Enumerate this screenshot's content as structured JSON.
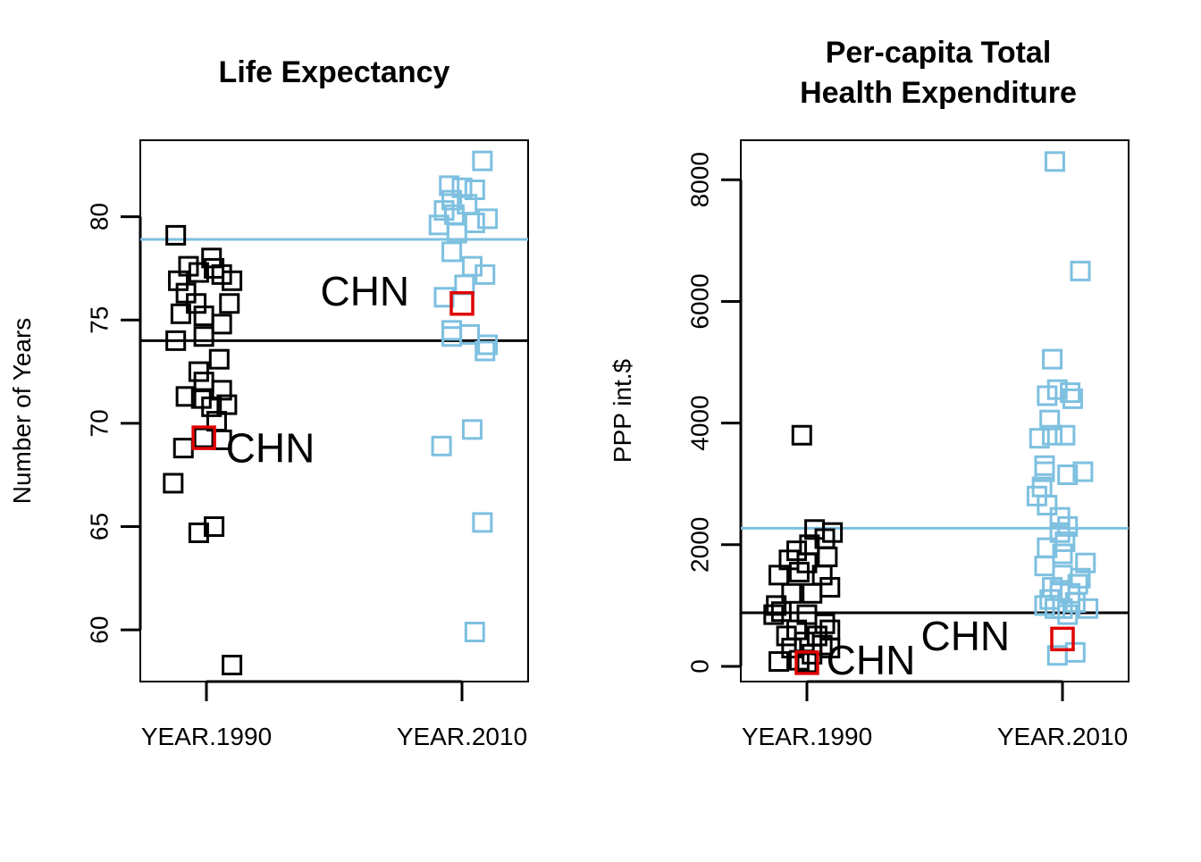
{
  "chart_data": [
    {
      "type": "scatter",
      "title": "Life Expectancy",
      "xlabel": "",
      "ylabel": "Number of Years",
      "categories": [
        "YEAR.1990",
        "YEAR.2010"
      ],
      "ylim": [
        57.5,
        83.7
      ],
      "yticks": [
        60,
        65,
        70,
        75,
        80
      ],
      "grid": false,
      "marker": "open-square",
      "colors": {
        "YEAR.1990": "#000000",
        "YEAR.2010": "#7ec0e0",
        "highlight": "#e00000"
      },
      "series": [
        {
          "name": "YEAR.1990",
          "category": "YEAR.1990",
          "color": "#000000",
          "points": [
            {
              "x": 0.88,
              "y": 79.1
            },
            {
              "x": 0.93,
              "y": 77.6
            },
            {
              "x": 0.97,
              "y": 77.3
            },
            {
              "x": 1.03,
              "y": 77.5
            },
            {
              "x": 1.02,
              "y": 78.0
            },
            {
              "x": 1.06,
              "y": 77.2
            },
            {
              "x": 1.1,
              "y": 76.9
            },
            {
              "x": 0.89,
              "y": 76.9
            },
            {
              "x": 1.09,
              "y": 75.8
            },
            {
              "x": 0.92,
              "y": 76.3
            },
            {
              "x": 0.96,
              "y": 75.8
            },
            {
              "x": 0.9,
              "y": 75.3
            },
            {
              "x": 0.99,
              "y": 75.2
            },
            {
              "x": 1.06,
              "y": 74.8
            },
            {
              "x": 0.99,
              "y": 74.2
            },
            {
              "x": 0.88,
              "y": 74.0
            },
            {
              "x": 1.05,
              "y": 73.1
            },
            {
              "x": 0.97,
              "y": 72.5
            },
            {
              "x": 0.99,
              "y": 72.0
            },
            {
              "x": 1.06,
              "y": 71.6
            },
            {
              "x": 0.92,
              "y": 71.3
            },
            {
              "x": 0.98,
              "y": 71.2
            },
            {
              "x": 1.02,
              "y": 70.8
            },
            {
              "x": 1.08,
              "y": 70.9
            },
            {
              "x": 1.04,
              "y": 70.1
            },
            {
              "x": 0.99,
              "y": 69.3
            },
            {
              "x": 1.06,
              "y": 69.2
            },
            {
              "x": 0.91,
              "y": 68.8
            },
            {
              "x": 0.87,
              "y": 67.1
            },
            {
              "x": 1.03,
              "y": 65.0
            },
            {
              "x": 0.97,
              "y": 64.7
            },
            {
              "x": 1.1,
              "y": 58.3
            }
          ]
        },
        {
          "name": "YEAR.2010",
          "category": "YEAR.2010",
          "color": "#7ec0e0",
          "points": [
            {
              "x": 2.08,
              "y": 82.7
            },
            {
              "x": 1.95,
              "y": 81.5
            },
            {
              "x": 2.0,
              "y": 81.4
            },
            {
              "x": 2.05,
              "y": 81.3
            },
            {
              "x": 1.96,
              "y": 80.8
            },
            {
              "x": 2.02,
              "y": 80.6
            },
            {
              "x": 1.93,
              "y": 80.3
            },
            {
              "x": 1.97,
              "y": 80.1
            },
            {
              "x": 2.1,
              "y": 79.9
            },
            {
              "x": 1.91,
              "y": 79.6
            },
            {
              "x": 2.05,
              "y": 79.7
            },
            {
              "x": 1.98,
              "y": 79.2
            },
            {
              "x": 1.96,
              "y": 78.3
            },
            {
              "x": 2.04,
              "y": 77.6
            },
            {
              "x": 2.09,
              "y": 77.2
            },
            {
              "x": 2.01,
              "y": 76.7
            },
            {
              "x": 1.93,
              "y": 76.1
            },
            {
              "x": 1.96,
              "y": 74.5
            },
            {
              "x": 1.96,
              "y": 74.2
            },
            {
              "x": 2.03,
              "y": 74.3
            },
            {
              "x": 2.1,
              "y": 73.8
            },
            {
              "x": 2.09,
              "y": 73.5
            },
            {
              "x": 1.92,
              "y": 68.9
            },
            {
              "x": 2.04,
              "y": 69.7
            },
            {
              "x": 2.08,
              "y": 65.2
            },
            {
              "x": 2.05,
              "y": 59.9
            }
          ]
        }
      ],
      "highlights": [
        {
          "label": "CHN",
          "category": "YEAR.1990",
          "x": 0.99,
          "y": 69.3,
          "label_x": 1.25,
          "label_y": 68.8
        },
        {
          "label": "CHN",
          "category": "YEAR.2010",
          "x": 2.0,
          "y": 75.8,
          "label_x": 1.62,
          "label_y": 76.4
        }
      ],
      "reference_lines": [
        {
          "series": "YEAR.1990",
          "y": 74.0,
          "color": "#000000"
        },
        {
          "series": "YEAR.2010",
          "y": 78.9,
          "color": "#7ec0e0"
        }
      ]
    },
    {
      "type": "scatter",
      "title": "Per-capita Total\nHealth Expenditure",
      "title_lines": [
        "Per-capita Total",
        "Health Expenditure"
      ],
      "xlabel": "",
      "ylabel": "PPP int.$",
      "categories": [
        "YEAR.1990",
        "YEAR.2010"
      ],
      "ylim": [
        -250,
        8650
      ],
      "yticks": [
        0,
        2000,
        4000,
        6000,
        8000
      ],
      "grid": false,
      "marker": "open-square",
      "colors": {
        "YEAR.1990": "#000000",
        "YEAR.2010": "#7ec0e0",
        "highlight": "#e00000"
      },
      "series": [
        {
          "name": "YEAR.1990",
          "category": "YEAR.1990",
          "color": "#000000",
          "points": [
            {
              "x": 0.98,
              "y": 3800
            },
            {
              "x": 1.03,
              "y": 2250
            },
            {
              "x": 1.1,
              "y": 2200
            },
            {
              "x": 1.07,
              "y": 2100
            },
            {
              "x": 1.01,
              "y": 2000
            },
            {
              "x": 0.96,
              "y": 1900
            },
            {
              "x": 0.93,
              "y": 1750
            },
            {
              "x": 1.08,
              "y": 1800
            },
            {
              "x": 1.0,
              "y": 1700
            },
            {
              "x": 0.89,
              "y": 1500
            },
            {
              "x": 0.97,
              "y": 1550
            },
            {
              "x": 1.06,
              "y": 1500
            },
            {
              "x": 1.09,
              "y": 1300
            },
            {
              "x": 0.94,
              "y": 1200
            },
            {
              "x": 1.02,
              "y": 1200
            },
            {
              "x": 0.88,
              "y": 1000
            },
            {
              "x": 0.9,
              "y": 900
            },
            {
              "x": 0.87,
              "y": 850
            },
            {
              "x": 1.0,
              "y": 850
            },
            {
              "x": 1.07,
              "y": 700
            },
            {
              "x": 0.96,
              "y": 600
            },
            {
              "x": 0.92,
              "y": 500
            },
            {
              "x": 1.09,
              "y": 600
            },
            {
              "x": 1.04,
              "y": 500
            },
            {
              "x": 0.99,
              "y": 400
            },
            {
              "x": 1.06,
              "y": 350
            },
            {
              "x": 1.09,
              "y": 300
            },
            {
              "x": 0.94,
              "y": 300
            },
            {
              "x": 1.02,
              "y": 200
            },
            {
              "x": 0.89,
              "y": 80
            },
            {
              "x": 0.97,
              "y": 100
            },
            {
              "x": 1.0,
              "y": 60
            }
          ]
        },
        {
          "name": "YEAR.2010",
          "category": "YEAR.2010",
          "color": "#7ec0e0",
          "points": [
            {
              "x": 1.97,
              "y": 8300
            },
            {
              "x": 2.07,
              "y": 6500
            },
            {
              "x": 1.96,
              "y": 5050
            },
            {
              "x": 1.94,
              "y": 4450
            },
            {
              "x": 1.98,
              "y": 4550
            },
            {
              "x": 2.03,
              "y": 4500
            },
            {
              "x": 2.04,
              "y": 4400
            },
            {
              "x": 1.95,
              "y": 4050
            },
            {
              "x": 1.91,
              "y": 3750
            },
            {
              "x": 1.96,
              "y": 3800
            },
            {
              "x": 2.01,
              "y": 3800
            },
            {
              "x": 1.93,
              "y": 3300
            },
            {
              "x": 1.93,
              "y": 3200
            },
            {
              "x": 2.08,
              "y": 3200
            },
            {
              "x": 2.02,
              "y": 3150
            },
            {
              "x": 1.92,
              "y": 2950
            },
            {
              "x": 1.9,
              "y": 2800
            },
            {
              "x": 1.94,
              "y": 2650
            },
            {
              "x": 1.99,
              "y": 2450
            },
            {
              "x": 2.02,
              "y": 2300
            },
            {
              "x": 1.99,
              "y": 2200
            },
            {
              "x": 2.01,
              "y": 2050
            },
            {
              "x": 1.94,
              "y": 1950
            },
            {
              "x": 2.0,
              "y": 1850
            },
            {
              "x": 2.09,
              "y": 1700
            },
            {
              "x": 1.93,
              "y": 1650
            },
            {
              "x": 2.0,
              "y": 1500
            },
            {
              "x": 2.07,
              "y": 1450
            },
            {
              "x": 2.06,
              "y": 1350
            },
            {
              "x": 1.96,
              "y": 1300
            },
            {
              "x": 1.99,
              "y": 1250
            },
            {
              "x": 2.03,
              "y": 1200
            },
            {
              "x": 1.95,
              "y": 1100
            },
            {
              "x": 2.05,
              "y": 1050
            },
            {
              "x": 1.93,
              "y": 1000
            },
            {
              "x": 1.97,
              "y": 950
            },
            {
              "x": 2.0,
              "y": 950
            },
            {
              "x": 2.1,
              "y": 950
            },
            {
              "x": 2.02,
              "y": 850
            },
            {
              "x": 1.98,
              "y": 180
            },
            {
              "x": 2.05,
              "y": 230
            }
          ]
        }
      ],
      "highlights": [
        {
          "label": "CHN",
          "category": "YEAR.1990",
          "x": 1.0,
          "y": 60,
          "label_x": 1.25,
          "label_y": 100
        },
        {
          "label": "CHN",
          "category": "YEAR.2010",
          "x": 2.0,
          "y": 450,
          "label_x": 1.62,
          "label_y": 500
        }
      ],
      "reference_lines": [
        {
          "series": "YEAR.1990",
          "y": 880,
          "color": "#000000"
        },
        {
          "series": "YEAR.2010",
          "y": 2270,
          "color": "#7ec0e0"
        }
      ]
    }
  ]
}
